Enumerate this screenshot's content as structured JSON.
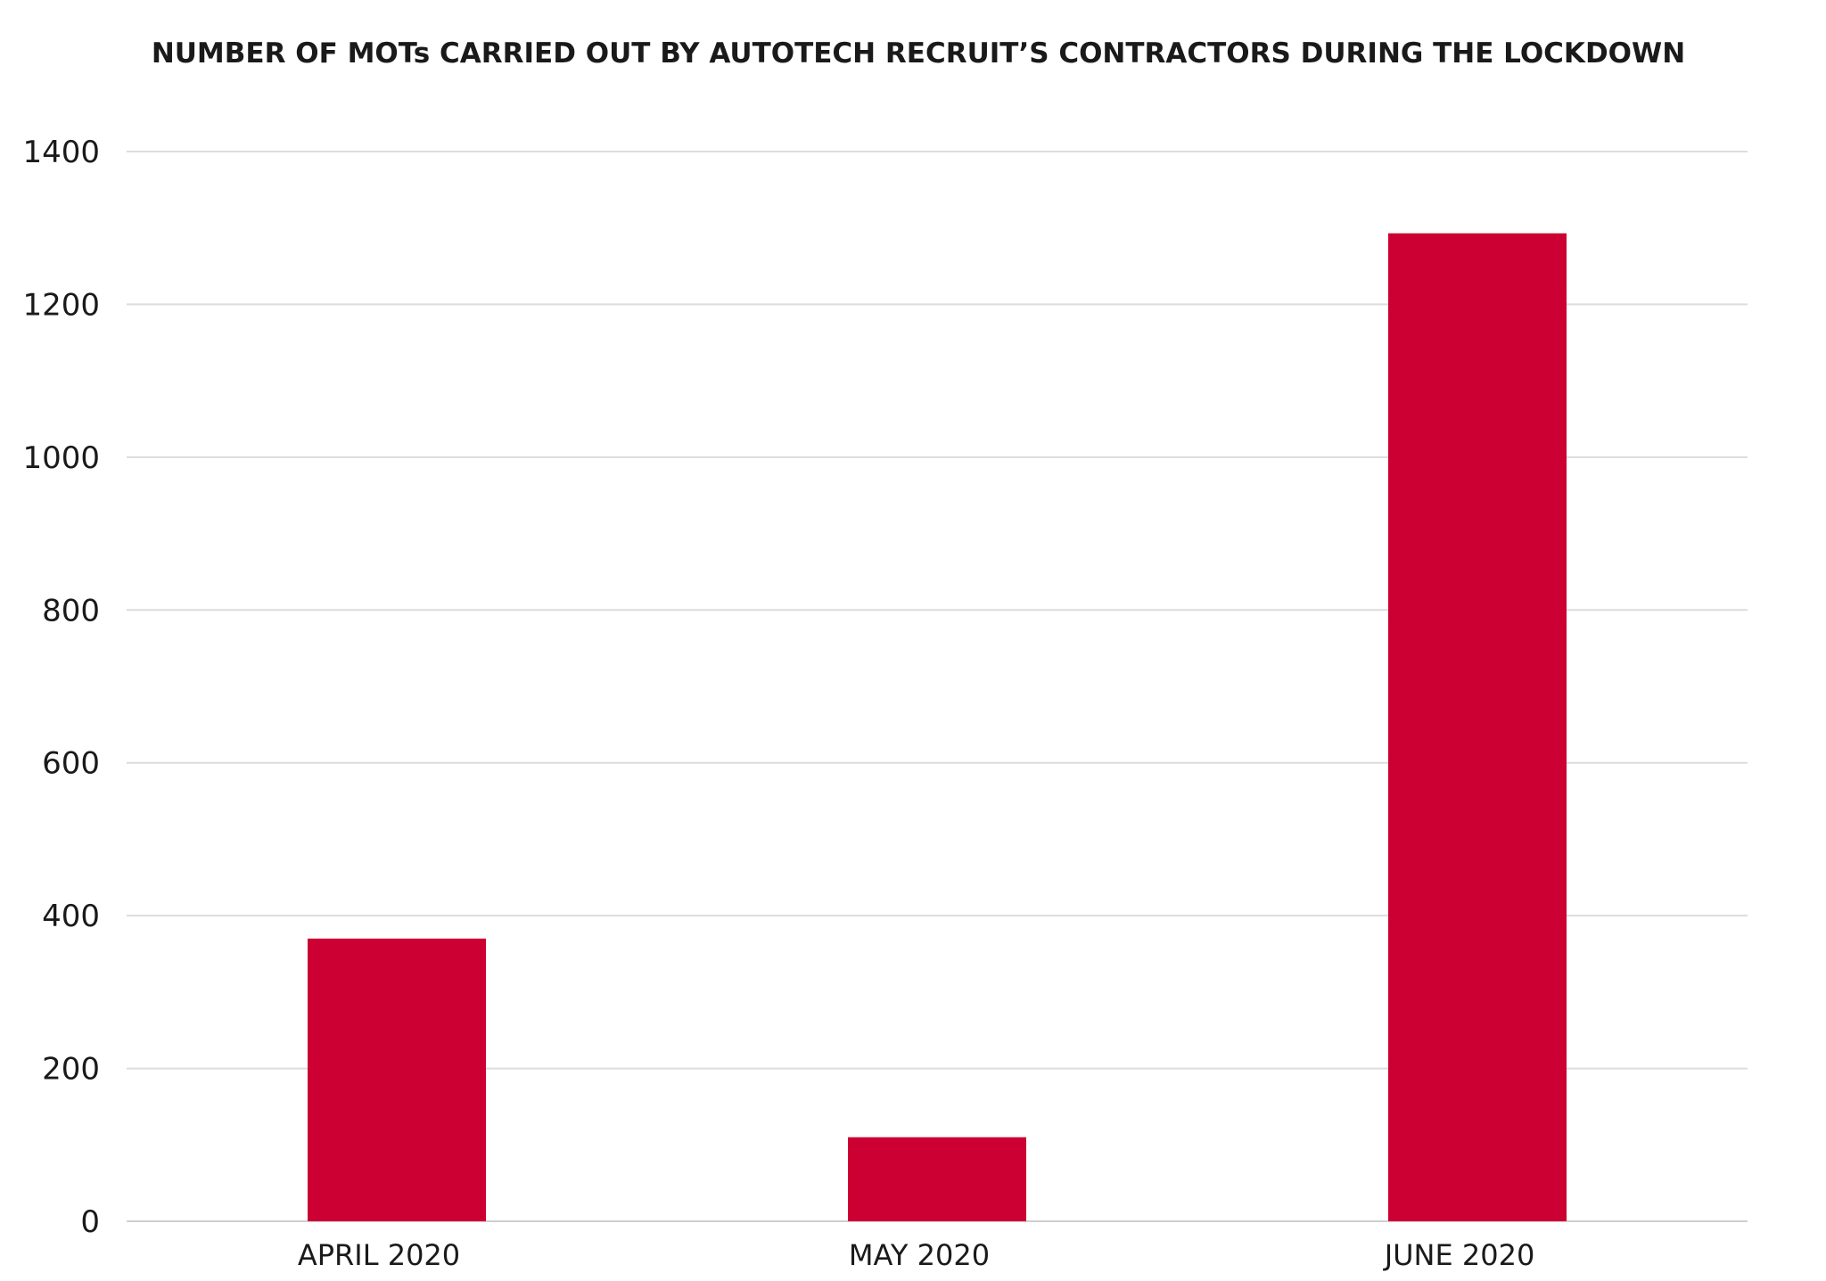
{
  "chart_data": {
    "type": "bar",
    "title": "NUMBER OF MOTs CARRIED OUT BY AUTOTECH RECRUIT’S CONTRACTORS DURING THE LOCKDOWN",
    "categories": [
      "APRIL 2020",
      "MAY 2020",
      "JUNE 2020"
    ],
    "values": [
      370,
      110,
      1293
    ],
    "xlabel": "",
    "ylabel": "",
    "ylim": [
      0,
      1400
    ],
    "yticks": [
      0,
      200,
      400,
      600,
      800,
      1000,
      1200,
      1400
    ],
    "grid": true,
    "legend": "none",
    "bar_color": "#cc0033",
    "grid_color": "#dcdcdc"
  }
}
